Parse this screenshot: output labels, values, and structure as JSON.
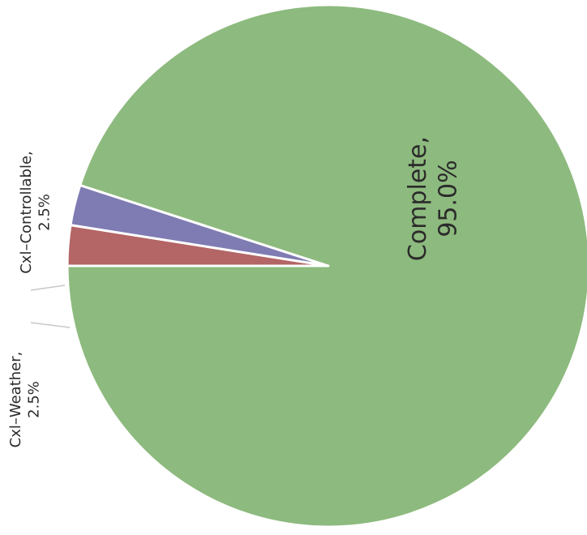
{
  "chart_data": {
    "type": "pie",
    "title": "",
    "slices": [
      {
        "name": "Complete",
        "value": 95.0,
        "label": "Complete,",
        "pct_text": "95.0%",
        "color": "#8dba7e"
      },
      {
        "name": "Cxl-Weather",
        "value": 2.5,
        "label": "Cxl–Weather,",
        "pct_text": "2.5%",
        "color": "#7f7bb3"
      },
      {
        "name": "Cxl-Controllable",
        "value": 2.5,
        "label": "Cxl–Controllable,",
        "pct_text": "2.5%",
        "color": "#b46566"
      }
    ],
    "start_angle_deg": 180,
    "direction": "counterclockwise",
    "label_orientation": "rotated-90"
  }
}
